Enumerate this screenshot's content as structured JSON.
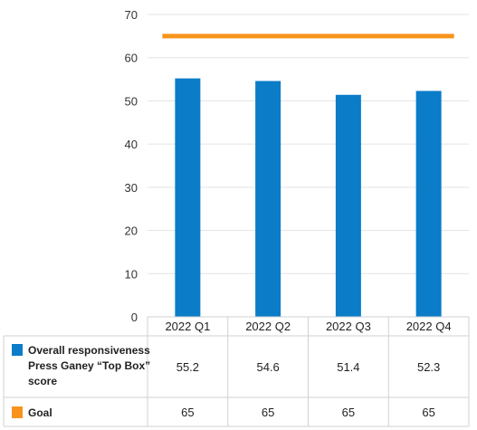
{
  "chart_data": {
    "type": "bar",
    "categories": [
      "2022 Q1",
      "2022 Q2",
      "2022 Q3",
      "2022 Q4"
    ],
    "series": [
      {
        "name": "Overall responsiveness Press Ganey “Top Box” score",
        "name_lines": [
          "Overall responsiveness",
          "Press Ganey “Top Box”",
          "score"
        ],
        "values": [
          55.2,
          54.6,
          51.4,
          52.3
        ],
        "display_values": [
          "55.2",
          "54.6",
          "51.4",
          "52.3"
        ],
        "color": "#0a7cc8",
        "style": "bar"
      },
      {
        "name": "Goal",
        "values": [
          65,
          65,
          65,
          65
        ],
        "display_values": [
          "65",
          "65",
          "65",
          "65"
        ],
        "color": "#f7941d",
        "style": "line"
      }
    ],
    "ylim": [
      0,
      70
    ],
    "yticks": [
      0,
      10,
      20,
      30,
      40,
      50,
      60,
      70
    ],
    "grid": true,
    "legend": "data-table",
    "title": "",
    "xlabel": "",
    "ylabel": ""
  }
}
